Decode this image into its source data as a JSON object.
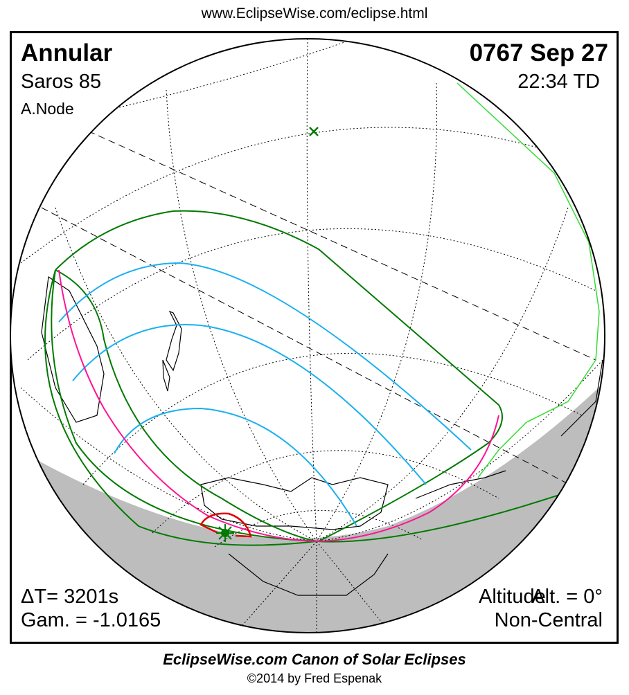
{
  "header": {
    "url": "www.EclipseWise.com/eclipse.html"
  },
  "eclipse": {
    "type": "Annular",
    "date": "0767 Sep 27",
    "saros": "Saros  85",
    "time": "22:34 TD",
    "node": "A.Node",
    "delta_t": "ΔT=   3201s",
    "gamma": "Gam. = -1.0165",
    "altitude_overlap_a": "Altitude",
    "altitude_overlap_b": "Alt. = 0°",
    "centrality": "Non-Central"
  },
  "footer": {
    "title": "EclipseWise.com Canon of Solar Eclipses",
    "copyright": "©2014 by Fred Espenak"
  },
  "colors": {
    "night_shade": "#bdbdbd",
    "penumbra_limits": "#007a00",
    "magnitude_lines": "#19b0f0",
    "rise_set_curve": "#ff1493",
    "max_eclipse_curve": "#e00000",
    "coastline_east": "#33dd33"
  }
}
